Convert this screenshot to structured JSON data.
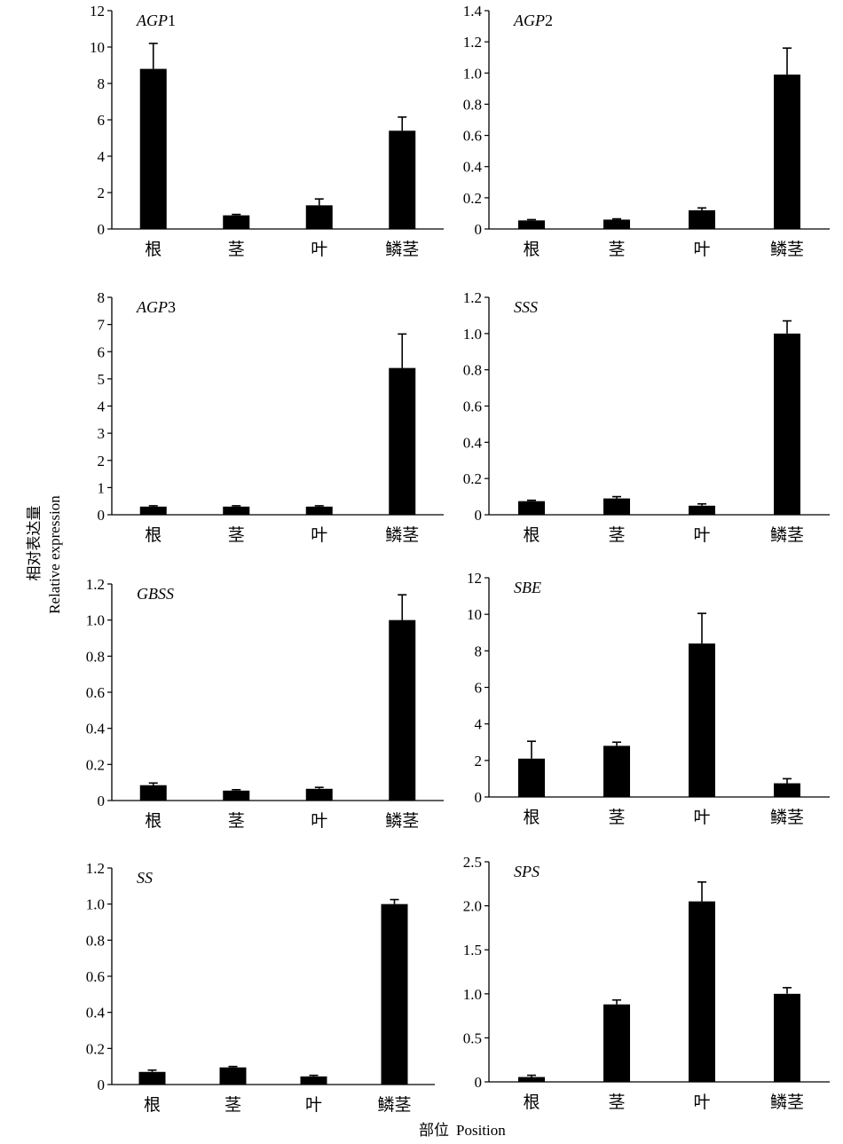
{
  "ylabel_cn": "相对表达量",
  "ylabel_en": "Relative expression",
  "xlabel_cn": "部位",
  "xlabel_en": "Position",
  "colors": {
    "bar": "#000000",
    "axis": "#000000",
    "background": "#ffffff"
  },
  "chart_data": [
    {
      "type": "bar",
      "gene": "AGP",
      "gene_suffix": "1",
      "categories": [
        "根",
        "茎",
        "叶",
        "鳞茎"
      ],
      "values": [
        8.8,
        0.75,
        1.3,
        5.4
      ],
      "errors": [
        1.4,
        0.05,
        0.35,
        0.75
      ],
      "ylim": [
        0,
        12
      ],
      "yticks": [
        "0",
        "2",
        "4",
        "6",
        "8",
        "10",
        "12"
      ],
      "grid": false
    },
    {
      "type": "bar",
      "gene": "AGP",
      "gene_suffix": "2",
      "categories": [
        "根",
        "茎",
        "叶",
        "鳞茎"
      ],
      "values": [
        0.055,
        0.06,
        0.12,
        0.99
      ],
      "errors": [
        0.005,
        0.005,
        0.015,
        0.17
      ],
      "ylim": [
        0,
        1.4
      ],
      "yticks": [
        "0",
        "0.2",
        "0.4",
        "0.6",
        "0.8",
        "1.0",
        "1.2",
        "1.4"
      ],
      "grid": false
    },
    {
      "type": "bar",
      "gene": "AGP",
      "gene_suffix": "3",
      "categories": [
        "根",
        "茎",
        "叶",
        "鳞茎"
      ],
      "values": [
        0.3,
        0.3,
        0.3,
        5.4
      ],
      "errors": [
        0.03,
        0.03,
        0.03,
        1.25
      ],
      "ylim": [
        0,
        8
      ],
      "yticks": [
        "0",
        "1",
        "2",
        "3",
        "4",
        "5",
        "6",
        "7",
        "8"
      ],
      "grid": false
    },
    {
      "type": "bar",
      "gene": "SSS",
      "gene_suffix": "",
      "categories": [
        "根",
        "茎",
        "叶",
        "鳞茎"
      ],
      "values": [
        0.075,
        0.09,
        0.05,
        1.0
      ],
      "errors": [
        0.005,
        0.01,
        0.01,
        0.07
      ],
      "ylim": [
        0,
        1.2
      ],
      "yticks": [
        "0",
        "0.2",
        "0.4",
        "0.6",
        "0.8",
        "1.0",
        "1.2"
      ],
      "grid": false
    },
    {
      "type": "bar",
      "gene": "GBSS",
      "gene_suffix": "",
      "categories": [
        "根",
        "茎",
        "叶",
        "鳞茎"
      ],
      "values": [
        0.085,
        0.055,
        0.065,
        1.0
      ],
      "errors": [
        0.012,
        0.005,
        0.008,
        0.14
      ],
      "ylim": [
        0,
        1.2
      ],
      "yticks": [
        "0",
        "0.2",
        "0.4",
        "0.6",
        "0.8",
        "1.0",
        "1.2"
      ],
      "grid": false
    },
    {
      "type": "bar",
      "gene": "SBE",
      "gene_suffix": "",
      "categories": [
        "根",
        "茎",
        "叶",
        "鳞茎"
      ],
      "values": [
        2.1,
        2.8,
        8.4,
        0.75
      ],
      "errors": [
        0.95,
        0.2,
        1.65,
        0.25
      ],
      "ylim": [
        0,
        12
      ],
      "yticks": [
        "0",
        "2",
        "4",
        "6",
        "8",
        "10",
        "12"
      ],
      "grid": false
    },
    {
      "type": "bar",
      "gene": "SS",
      "gene_suffix": "",
      "categories": [
        "根",
        "茎",
        "叶",
        "鳞茎"
      ],
      "values": [
        0.07,
        0.095,
        0.045,
        1.0
      ],
      "errors": [
        0.01,
        0.005,
        0.006,
        0.025
      ],
      "ylim": [
        0,
        1.2
      ],
      "yticks": [
        "0",
        "0.2",
        "0.4",
        "0.6",
        "0.8",
        "1.0",
        "1.2"
      ],
      "grid": false
    },
    {
      "type": "bar",
      "gene": "SPS",
      "gene_suffix": "",
      "categories": [
        "根",
        "茎",
        "叶",
        "鳞茎"
      ],
      "values": [
        0.055,
        0.88,
        2.05,
        1.0
      ],
      "errors": [
        0.02,
        0.05,
        0.22,
        0.07
      ],
      "ylim": [
        0,
        2.5
      ],
      "yticks": [
        "0",
        "0.5",
        "1.0",
        "1.5",
        "2.0",
        "2.5"
      ],
      "grid": false
    }
  ]
}
